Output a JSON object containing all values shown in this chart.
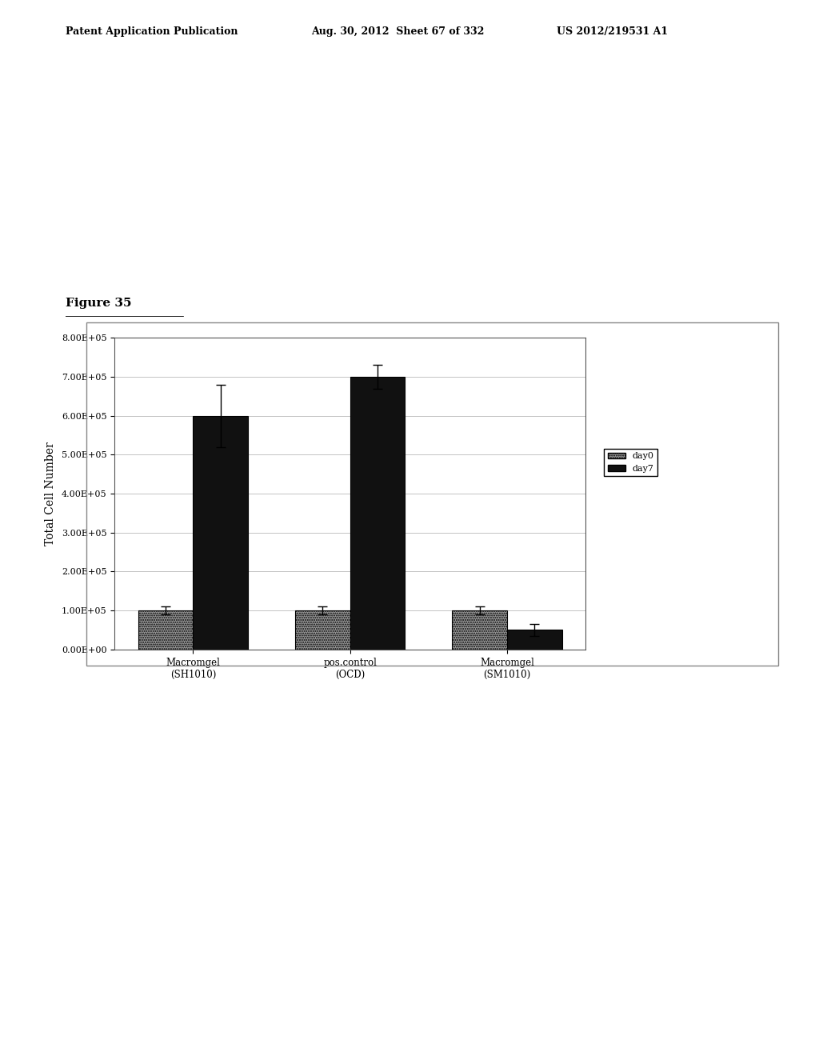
{
  "categories": [
    "Macromgel\n(SH1010)",
    "pos.control\n(OCD)",
    "Macromgel\n(SM1010)"
  ],
  "day0_values": [
    100000,
    100000,
    100000
  ],
  "day7_values": [
    600000,
    700000,
    50000
  ],
  "day0_errors": [
    10000,
    10000,
    10000
  ],
  "day7_errors": [
    80000,
    30000,
    15000
  ],
  "day0_color": "#999999",
  "day7_color": "#111111",
  "ylabel": "Total Cell Number",
  "ylim": [
    0,
    800000
  ],
  "yticks": [
    0,
    100000,
    200000,
    300000,
    400000,
    500000,
    600000,
    700000,
    800000
  ],
  "ytick_labels": [
    "0.00E+00",
    "1.00E+05",
    "2.00E+05",
    "3.00E+05",
    "4.00E+05",
    "5.00E+05",
    "6.00E+05",
    "7.00E+05",
    "8.00E+05"
  ],
  "legend_labels": [
    "day0",
    "day7"
  ],
  "figure_title": "Figure 35",
  "header_left": "Patent Application Publication",
  "header_mid": "Aug. 30, 2012  Sheet 67 of 332",
  "header_right": "US 2012/219531 A1",
  "bar_width": 0.35,
  "background_color": "#ffffff",
  "chart_bg_color": "#ffffff",
  "grid_color": "#aaaaaa",
  "border_color": "#555555"
}
